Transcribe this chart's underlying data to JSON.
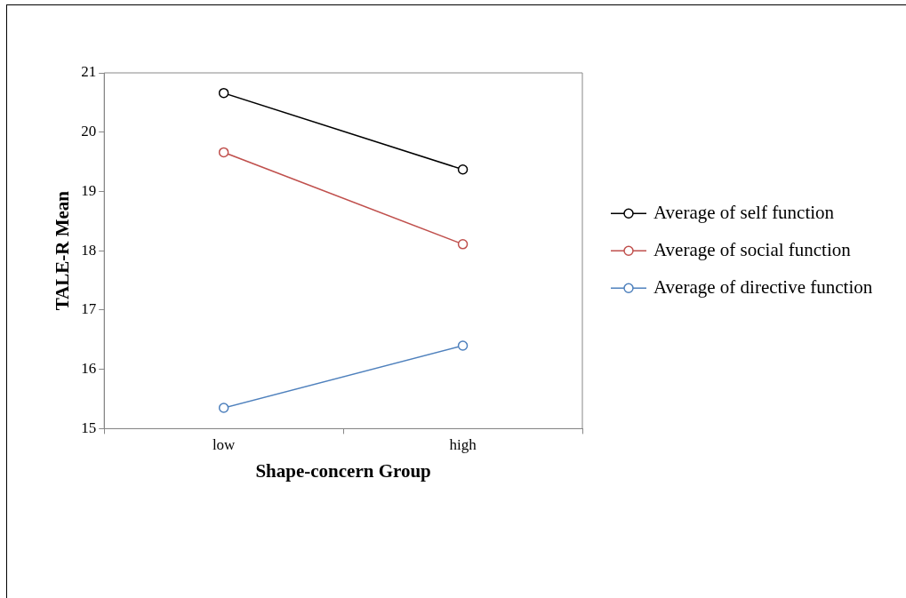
{
  "chart_data": {
    "type": "line",
    "xlabel": "Shape-concern Group",
    "ylabel": "TALE-R Mean",
    "categories": [
      "low",
      "high"
    ],
    "series": [
      {
        "name": "Average of self function",
        "color": "#000000",
        "values": [
          20.66,
          19.37
        ]
      },
      {
        "name": "Average of social function",
        "color": "#c0504d",
        "values": [
          19.66,
          18.11
        ]
      },
      {
        "name": "Average of directive function",
        "color": "#4f81bd",
        "values": [
          15.35,
          16.4
        ]
      }
    ],
    "ylim": [
      15,
      21
    ],
    "yticks": [
      15,
      16,
      17,
      18,
      19,
      20,
      21
    ],
    "legend": "right",
    "marker": "circle",
    "line_style": "solid"
  }
}
